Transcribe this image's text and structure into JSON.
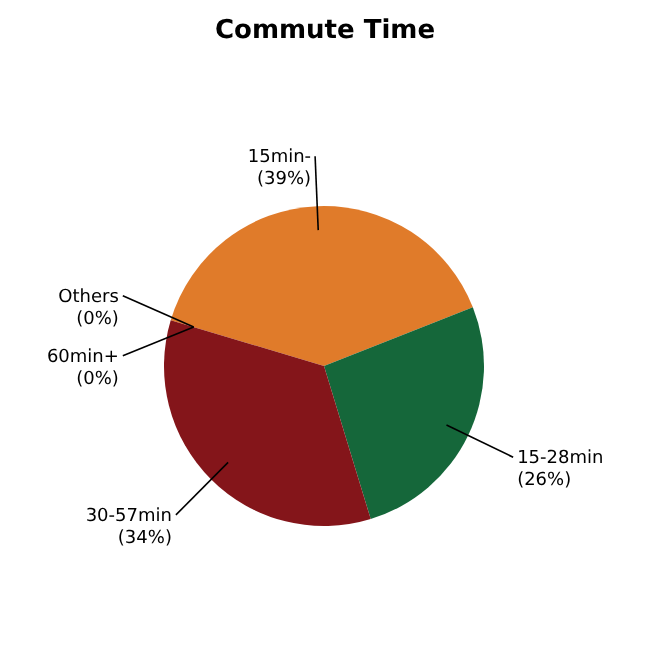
{
  "chart_data": {
    "type": "pie",
    "title": "Commute Time",
    "categories": [
      "15min-",
      "15-28min",
      "30-57min",
      "60min+",
      "Others"
    ],
    "values": [
      39,
      26,
      34,
      0,
      0
    ],
    "value_labels": [
      "(39%)",
      "(26%)",
      "(34%)",
      "(0%)",
      "(0%)"
    ],
    "colors": [
      "#e07b2a",
      "#15673a",
      "#84151a",
      "#3a5a8a",
      "#8a8a8a"
    ]
  }
}
